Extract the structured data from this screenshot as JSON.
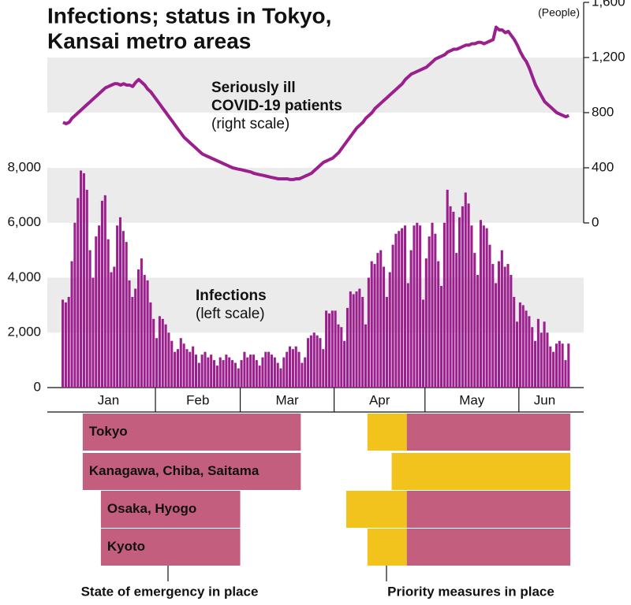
{
  "chart_data": {
    "type": "bar",
    "title": [
      "Infections; status in Tokyo,",
      "Kansai metro areas"
    ],
    "unit_label": "(People)",
    "categories": [
      "Jan",
      null,
      null,
      null,
      null,
      null,
      null,
      null,
      null,
      null,
      null,
      null,
      null,
      null,
      null,
      null,
      null,
      null,
      null,
      null,
      null,
      null,
      null,
      null,
      null,
      null,
      null,
      null,
      null,
      null,
      null,
      "Feb",
      null,
      null,
      null,
      null,
      null,
      null,
      null,
      null,
      null,
      null,
      null,
      null,
      null,
      null,
      null,
      null,
      null,
      null,
      null,
      null,
      null,
      null,
      null,
      null,
      null,
      null,
      null,
      "Mar",
      null,
      null,
      null,
      null,
      null,
      null,
      null,
      null,
      null,
      null,
      null,
      null,
      null,
      null,
      null,
      null,
      null,
      null,
      null,
      null,
      null,
      null,
      null,
      null,
      null,
      null,
      null,
      null,
      null,
      null,
      "Apr",
      null,
      null,
      null,
      null,
      null,
      null,
      null,
      null,
      null,
      null,
      null,
      null,
      null,
      null,
      null,
      null,
      null,
      null,
      null,
      null,
      null,
      null,
      null,
      null,
      null,
      null,
      null,
      null,
      null,
      "May",
      null,
      null,
      null,
      null,
      null,
      null,
      null,
      null,
      null,
      null,
      null,
      null,
      null,
      null,
      null,
      null,
      null,
      null,
      null,
      null,
      null,
      null,
      null,
      null,
      null,
      null,
      null,
      null,
      null,
      null,
      "Jun",
      null,
      null,
      null,
      null,
      null,
      null,
      null,
      null,
      null,
      null,
      null,
      null,
      null,
      null,
      null,
      null
    ],
    "series": [
      {
        "type": "bar",
        "color": "#9b1f8c",
        "axis": "y",
        "values": [
          3200,
          3100,
          3300,
          4600,
          6000,
          6900,
          7900,
          7800,
          7200,
          5000,
          4000,
          5500,
          5900,
          6800,
          7000,
          5400,
          4200,
          4400,
          5900,
          6200,
          5700,
          5300,
          3900,
          3300,
          3600,
          4300,
          4700,
          4100,
          3900,
          3100,
          2500,
          1800,
          2600,
          2500,
          2300,
          2000,
          1700,
          1300,
          1400,
          1800,
          1600,
          1400,
          1300,
          1500,
          1200,
          900,
          1200,
          1300,
          1100,
          1200,
          1000,
          800,
          1100,
          1000,
          1200,
          1100,
          1000,
          900,
          700,
          1000,
          1300,
          1100,
          1200,
          1200,
          1000,
          800,
          1100,
          1300,
          1300,
          1200,
          1100,
          900,
          700,
          1100,
          1300,
          1500,
          1400,
          1500,
          1300,
          900,
          1100,
          1800,
          1900,
          2000,
          1900,
          1800,
          1400,
          2800,
          2700,
          2800,
          2800,
          2300,
          2200,
          1700,
          2900,
          3500,
          3400,
          3500,
          3600,
          3300,
          2300,
          4000,
          4600,
          4500,
          4900,
          5000,
          4400,
          3300,
          4200,
          5200,
          5600,
          5700,
          5800,
          5900,
          3800,
          5000,
          5900,
          6000,
          5900,
          3200,
          4700,
          5500,
          6000,
          5600,
          4600,
          3700,
          6000,
          7200,
          6600,
          6400,
          4900,
          6200,
          6600,
          7100,
          6700,
          5900,
          4900,
          4100,
          6100,
          5900,
          5800,
          5200,
          4500,
          3800,
          4600,
          5000,
          4400,
          4500,
          4100,
          3300,
          2400,
          3100,
          3000,
          2800,
          2600,
          2200,
          1700,
          2500,
          2000,
          2400,
          2000,
          1500,
          1300,
          1600,
          1700,
          1600,
          1000,
          1600
        ]
      },
      {
        "type": "line",
        "color": "#9b1f8c",
        "axis": "y2",
        "values": [
          730,
          720,
          730,
          760,
          780,
          800,
          820,
          840,
          860,
          880,
          900,
          920,
          940,
          960,
          980,
          990,
          1000,
          1010,
          1010,
          1000,
          1010,
          1000,
          1000,
          990,
          1020,
          1040,
          1020,
          1000,
          970,
          950,
          920,
          890,
          860,
          830,
          800,
          770,
          740,
          710,
          680,
          650,
          620,
          600,
          580,
          560,
          540,
          520,
          500,
          490,
          480,
          470,
          460,
          450,
          440,
          430,
          420,
          410,
          400,
          395,
          390,
          385,
          380,
          375,
          370,
          360,
          355,
          350,
          345,
          340,
          335,
          330,
          325,
          320,
          320,
          320,
          320,
          315,
          315,
          320,
          320,
          330,
          340,
          350,
          360,
          380,
          400,
          420,
          440,
          450,
          460,
          470,
          490,
          510,
          540,
          570,
          600,
          630,
          660,
          690,
          710,
          730,
          760,
          780,
          800,
          830,
          850,
          870,
          890,
          910,
          930,
          950,
          970,
          990,
          1010,
          1040,
          1060,
          1080,
          1090,
          1100,
          1110,
          1120,
          1130,
          1150,
          1170,
          1190,
          1200,
          1210,
          1220,
          1240,
          1250,
          1260,
          1260,
          1270,
          1280,
          1290,
          1290,
          1300,
          1300,
          1310,
          1310,
          1300,
          1310,
          1320,
          1330,
          1420,
          1400,
          1400,
          1380,
          1390,
          1360,
          1330,
          1290,
          1240,
          1200,
          1170,
          1120,
          1060,
          1000,
          960,
          920,
          880,
          860,
          840,
          820,
          800,
          790,
          780,
          770,
          780
        ]
      }
    ],
    "ylim": [
      0,
      8000
    ],
    "yticks": [
      0,
      {
        "value": 2000,
        "label": "2,000"
      },
      {
        "value": 4000,
        "label": "4,000"
      },
      {
        "value": 6000,
        "label": "6,000"
      },
      {
        "value": 8000,
        "label": "8,000"
      }
    ],
    "y2lim": [
      0,
      1600
    ],
    "y2ticks": [
      0,
      400,
      800,
      {
        "value": 1200,
        "label": "1,200"
      },
      {
        "value": 1600,
        "label": "1,600"
      }
    ],
    "band_color": "#ebebeb",
    "annotations": [
      {
        "lines": [
          "Seriously ill",
          "COVID-19 patients"
        ],
        "note": "(right scale)"
      },
      {
        "lines": [
          "Infections"
        ],
        "note": "(left scale)"
      }
    ],
    "timeline": {
      "emergency_label": "State of emergency in place",
      "emergency_color": "#c45e7e",
      "priority_label": "Priority measures in place",
      "priority_color": "#f2c31c",
      "rows": [
        {
          "label": "Tokyo",
          "emergency": [
            [
              7,
              79
            ],
            [
              114,
              168
            ]
          ],
          "priority": [
            [
              101,
              114
            ]
          ]
        },
        {
          "label": "Kanagawa, Chiba, Saitama",
          "emergency": [
            [
              7,
              79
            ]
          ],
          "priority": [
            [
              109,
              168
            ]
          ]
        },
        {
          "label": "Osaka, Hyogo",
          "emergency": [
            [
              13,
              59
            ],
            [
              114,
              168
            ]
          ],
          "priority": [
            [
              94,
              114
            ]
          ]
        },
        {
          "label": "Kyoto",
          "emergency": [
            [
              13,
              59
            ],
            [
              114,
              168
            ]
          ],
          "priority": [
            [
              101,
              114
            ]
          ]
        }
      ]
    }
  }
}
